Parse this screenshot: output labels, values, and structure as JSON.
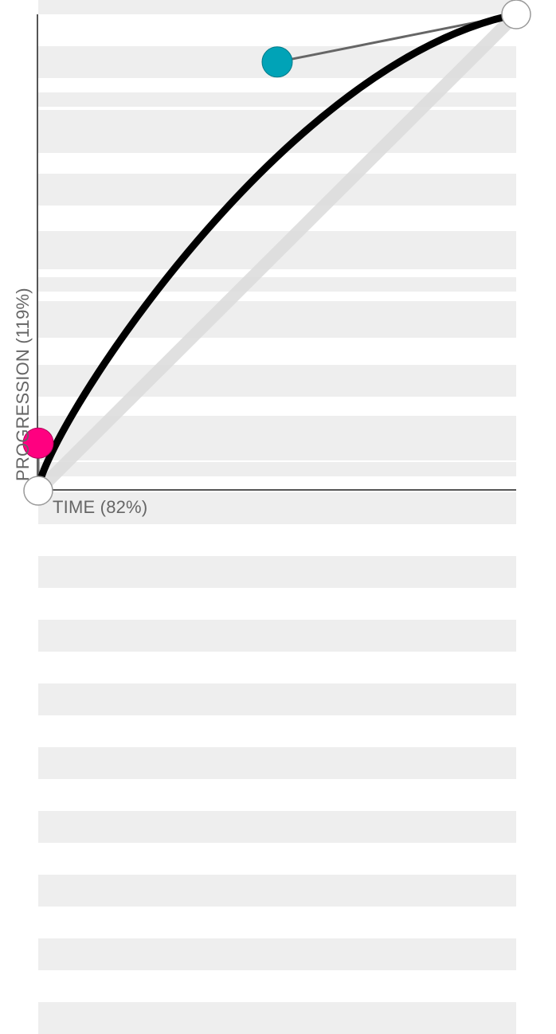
{
  "axes": {
    "x_label": "TIME (82%)",
    "y_label": "PROGRESSION (119%)"
  },
  "bezier": {
    "start": {
      "time": 0,
      "progression": 0
    },
    "control_1": {
      "time": 0,
      "progression": 0.1
    },
    "control_2": {
      "time": 0.5,
      "progression": 0.9
    },
    "end": {
      "time": 1,
      "progression": 1
    }
  },
  "colors": {
    "curve": "#000000",
    "linear_reference": "#dddddd",
    "handle_line": "#666666",
    "control_1": "#ff0080",
    "control_2": "#00a3b7",
    "endpoint_fill": "#ffffff",
    "endpoint_stroke": "#999999",
    "axis": "#555555",
    "stripe": "#eeeeee"
  }
}
